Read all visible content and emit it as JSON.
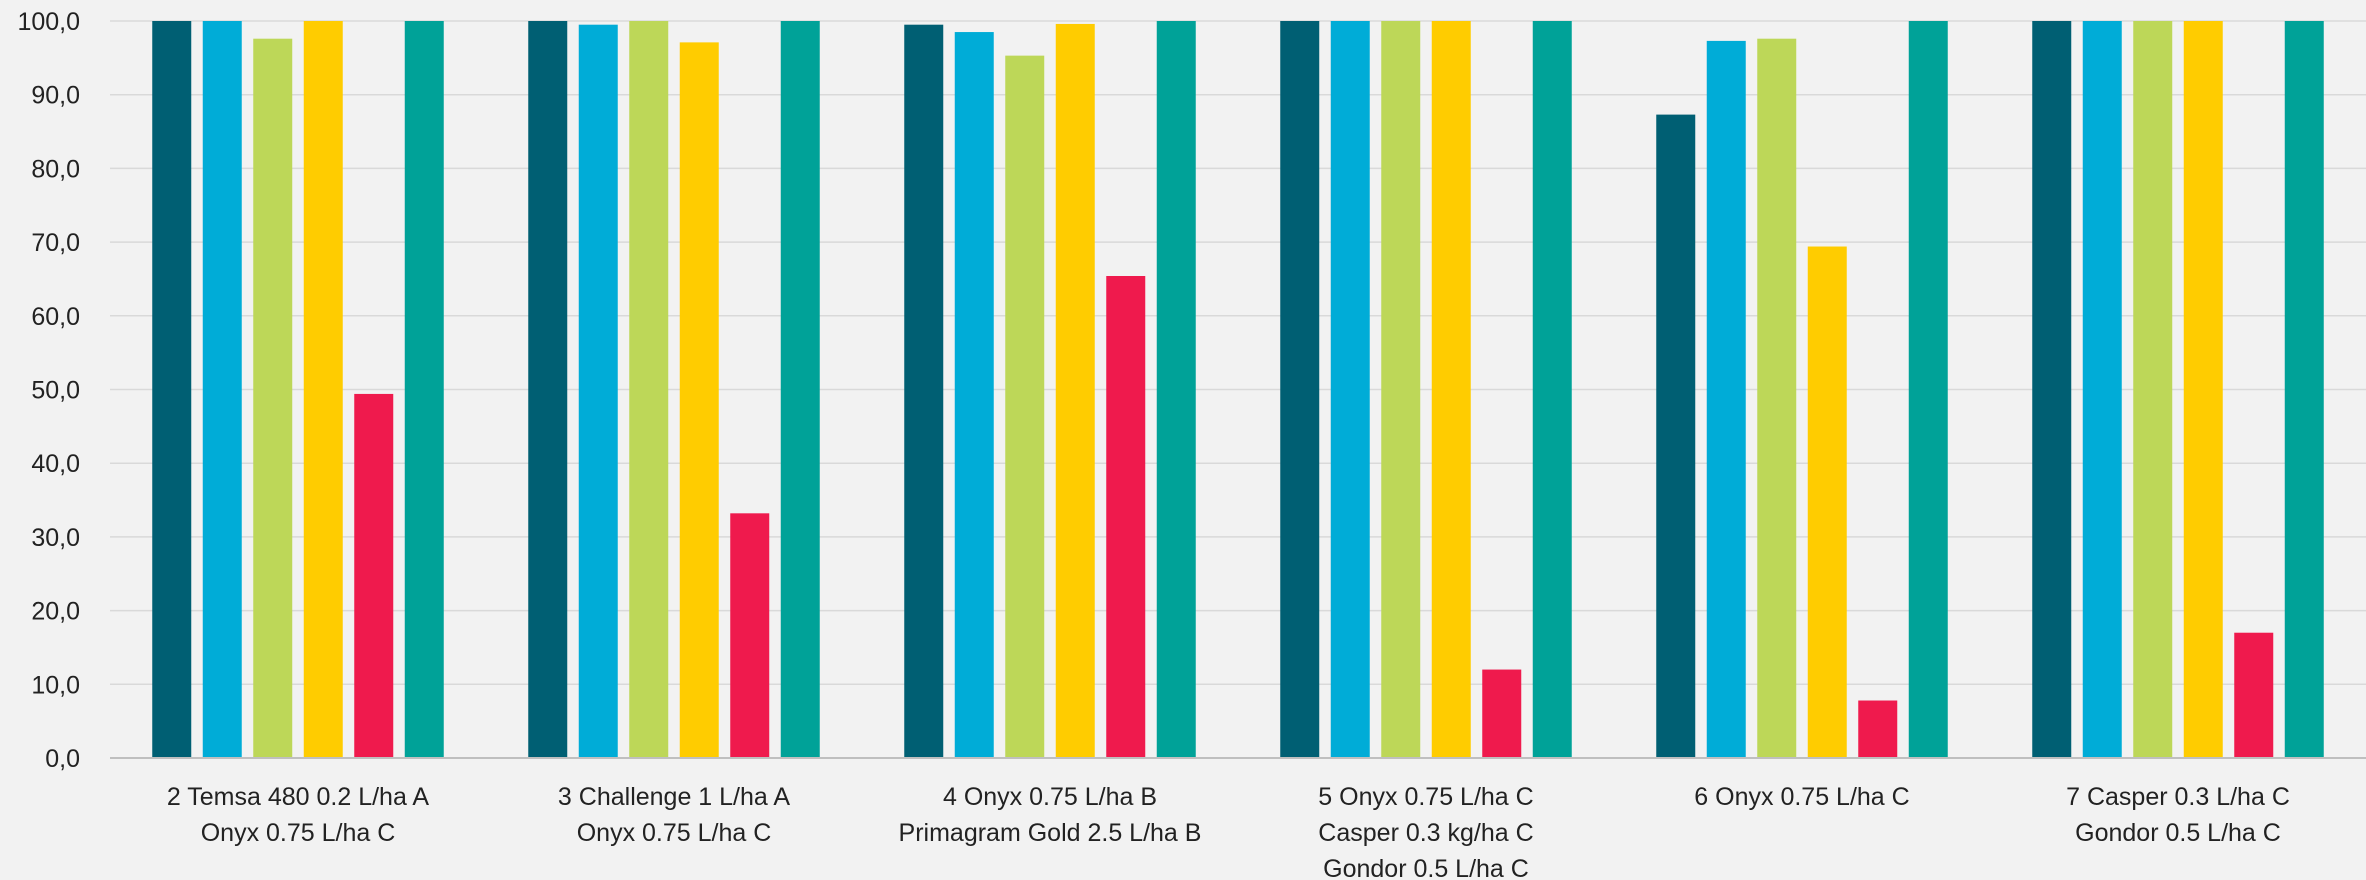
{
  "chart_data": {
    "type": "bar",
    "title": "",
    "xlabel": "",
    "ylabel": "",
    "ylim": [
      0,
      100
    ],
    "yticks": [
      "0,0",
      "10,0",
      "20,0",
      "30,0",
      "40,0",
      "50,0",
      "60,0",
      "70,0",
      "80,0",
      "90,0",
      "100,0"
    ],
    "grid": true,
    "legend": "none",
    "categories": [
      [
        "2 Temsa 480 0.2 L/ha A",
        "Onyx 0.75 L/ha C"
      ],
      [
        "3 Challenge 1 L/ha A",
        "Onyx 0.75 L/ha C"
      ],
      [
        "4 Onyx 0.75 L/ha B",
        "Primagram Gold 2.5 L/ha B"
      ],
      [
        "5 Onyx 0.75 L/ha C",
        "Casper 0.3 kg/ha C",
        "Gondor 0.5 L/ha C"
      ],
      [
        "6 Onyx 0.75 L/ha C"
      ],
      [
        "7 Casper 0.3 L/ha C",
        "Gondor 0.5 L/ha C"
      ]
    ],
    "series": [
      {
        "color": "#005f73",
        "values": [
          100.0,
          100.0,
          99.5,
          100.0,
          87.3,
          100.0
        ]
      },
      {
        "color": "#00acd7",
        "values": [
          100.0,
          99.5,
          98.5,
          100.0,
          97.3,
          100.0
        ]
      },
      {
        "color": "#bdd758",
        "values": [
          97.6,
          100.0,
          95.3,
          100.0,
          97.6,
          100.0
        ]
      },
      {
        "color": "#ffcc00",
        "values": [
          100.0,
          97.1,
          99.6,
          100.0,
          69.4,
          100.0
        ]
      },
      {
        "color": "#ef1a4d",
        "values": [
          49.4,
          33.2,
          65.4,
          12.0,
          7.8,
          17.0
        ]
      },
      {
        "color": "#00a298",
        "values": [
          100.0,
          100.0,
          100.0,
          100.0,
          100.0,
          100.0
        ]
      }
    ]
  }
}
